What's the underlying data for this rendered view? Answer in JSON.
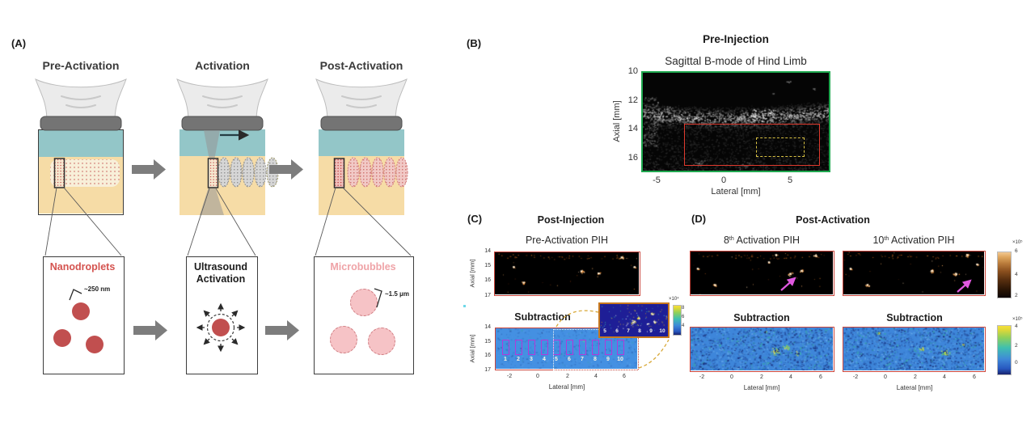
{
  "panel_a": {
    "label": "(A)",
    "stage_titles": [
      "Pre-Activation",
      "Activation",
      "Post-Activation"
    ],
    "boxes": {
      "nanodroplets": {
        "title": "Nanodroplets",
        "size": "~250 nm"
      },
      "ultrasound": {
        "title_line1": "Ultrasound",
        "title_line2": "Activation"
      },
      "microbubbles": {
        "title": "Microbubbles",
        "size": "~1.5 μm"
      }
    },
    "colors": {
      "droplet_red": "#c14f4f",
      "bubble_pink": "#f6c3c6",
      "nanodroplets_title": "#d4534f",
      "microbubbles_title": "#efa3a7",
      "gel_teal": "#93c6c8",
      "tissue_tan": "#f6dca6",
      "arrow_gray": "#7d7d7d"
    }
  },
  "panel_b": {
    "label": "(B)",
    "title": "Pre-Injection",
    "subtitle": "Sagittal B-mode of Hind Limb",
    "ylabel": "Axial [mm]",
    "xlabel": "Lateral [mm]",
    "yticks": [
      "10",
      "12",
      "14",
      "16"
    ],
    "xticks": [
      "-5",
      "0",
      "5"
    ],
    "colors": {
      "frame_green": "#1fa84f",
      "roi_red": "#e03a2e",
      "target_yellow": "#d9c243"
    }
  },
  "panel_c": {
    "label": "(C)",
    "title": "Post-Injection",
    "pih_title": "Pre-Activation PIH",
    "sub_title": "Subtraction",
    "ylabel": "Axial [mm]",
    "xlabel": "Lateral [mm]",
    "pih_yticks": [
      "14",
      "15",
      "16",
      "17"
    ],
    "sub_yticks": [
      "14",
      "15",
      "16",
      "17"
    ],
    "sub_xticks": [
      "-2",
      "0",
      "2",
      "4",
      "6"
    ],
    "region_numbers": [
      "1",
      "2",
      "3",
      "4",
      "5",
      "6",
      "7",
      "8",
      "9",
      "10"
    ],
    "inset_numbers": [
      "5",
      "6",
      "7",
      "8",
      "9",
      "10"
    ],
    "inset_colorbar": {
      "label": "×10⁴",
      "ticks": [
        "8",
        "6",
        "4"
      ]
    },
    "colors": {
      "region_magenta": "#b13ad8",
      "inset_border": "#c8791e",
      "connector_yellow": "#d8a838"
    }
  },
  "panel_d": {
    "label": "(D)",
    "title": "Post-Activation",
    "pih_left": {
      "base": "8",
      "sup": "th",
      "rest": " Activation PIH"
    },
    "pih_right": {
      "base": "10",
      "sup": "th",
      "rest": " Activation PIH"
    },
    "sub_title_left": "Subtraction",
    "sub_title_right": "Subtraction",
    "xlabel_left": "Lateral [mm]",
    "xlabel_right": "Lateral [mm]",
    "xticks_left": [
      "-2",
      "0",
      "2",
      "4",
      "6"
    ],
    "xticks_right": [
      "-2",
      "0",
      "2",
      "4",
      "6"
    ],
    "pih_colorbar": {
      "label": "×10⁵",
      "ticks": [
        "6",
        "4",
        "2"
      ]
    },
    "sub_colorbar": {
      "label": "×10⁵",
      "ticks": [
        "4",
        "2",
        "0"
      ]
    },
    "colors": {
      "arrow_magenta": "#e058e0",
      "pih_border": "#cb463c"
    }
  }
}
